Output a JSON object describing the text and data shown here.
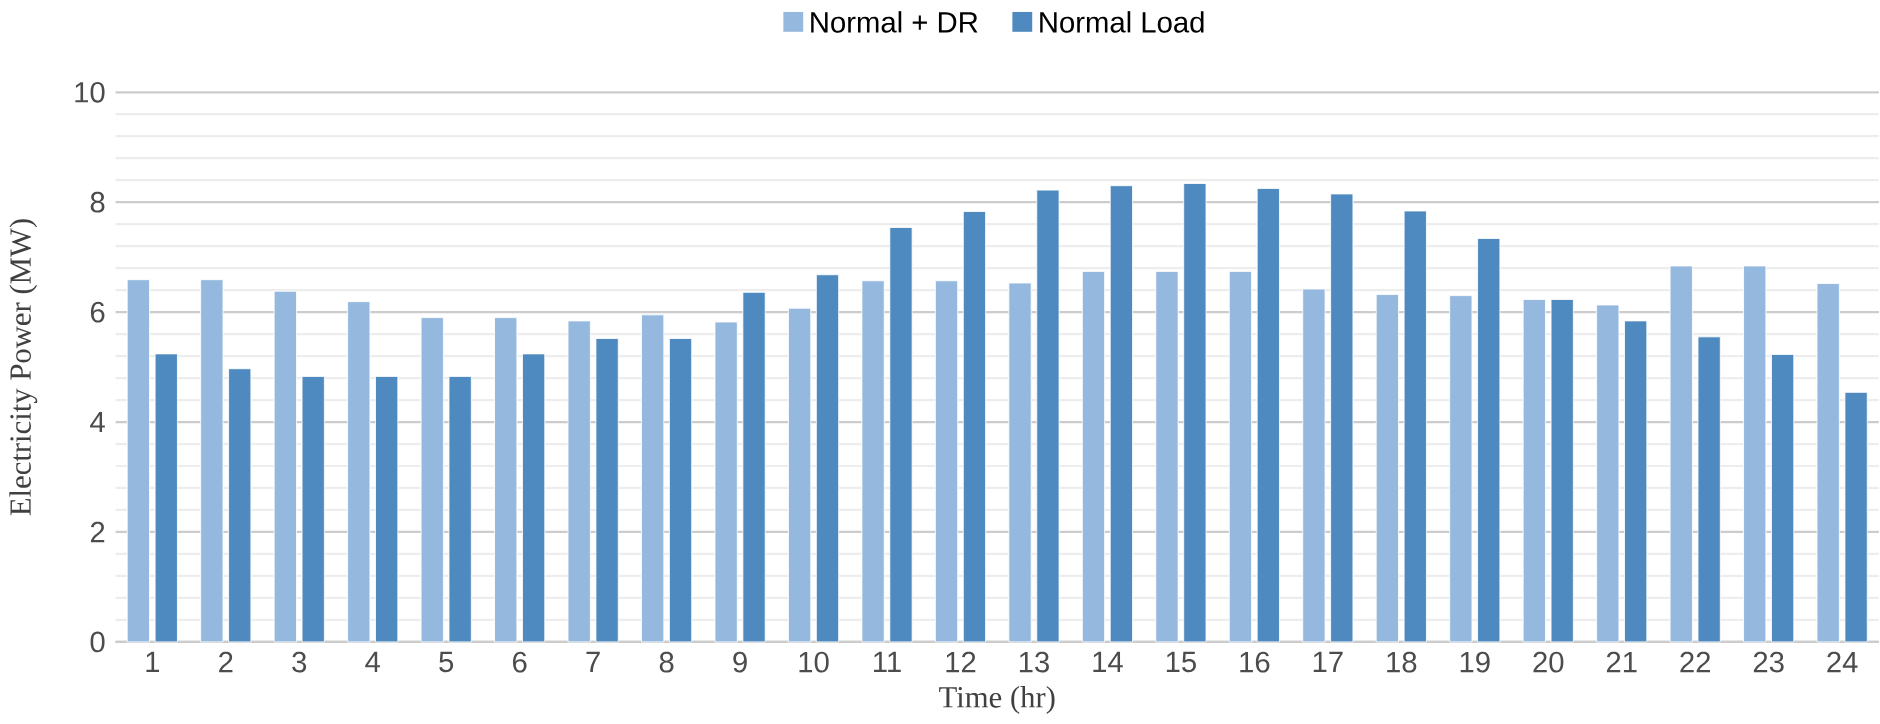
{
  "chart_data": {
    "type": "bar",
    "xlabel": "Time (hr)",
    "ylabel": "Electricity Power (MW)",
    "categories": [
      "1",
      "2",
      "3",
      "4",
      "5",
      "6",
      "7",
      "8",
      "9",
      "10",
      "11",
      "12",
      "13",
      "14",
      "15",
      "16",
      "17",
      "18",
      "19",
      "20",
      "21",
      "22",
      "23",
      "24"
    ],
    "series": [
      {
        "name": "Normal + DR",
        "color": "#95b8de",
        "values": [
          6.59,
          6.59,
          6.38,
          6.19,
          5.9,
          5.9,
          5.84,
          5.95,
          5.82,
          6.07,
          6.57,
          6.57,
          6.53,
          6.74,
          6.74,
          6.74,
          6.42,
          6.32,
          6.3,
          6.23,
          6.13,
          6.84,
          6.84,
          6.52
        ]
      },
      {
        "name": "Normal Load",
        "color": "#4e8abf",
        "values": [
          5.24,
          4.97,
          4.83,
          4.83,
          4.83,
          5.24,
          5.52,
          5.52,
          6.36,
          6.68,
          7.54,
          7.83,
          8.22,
          8.3,
          8.34,
          8.25,
          8.15,
          7.84,
          7.34,
          6.23,
          5.84,
          5.55,
          5.23,
          4.54
        ]
      }
    ],
    "ylim": [
      0,
      10
    ],
    "yticks": [
      0,
      2,
      4,
      6,
      8,
      10
    ],
    "grid": "y",
    "legend": "top"
  }
}
